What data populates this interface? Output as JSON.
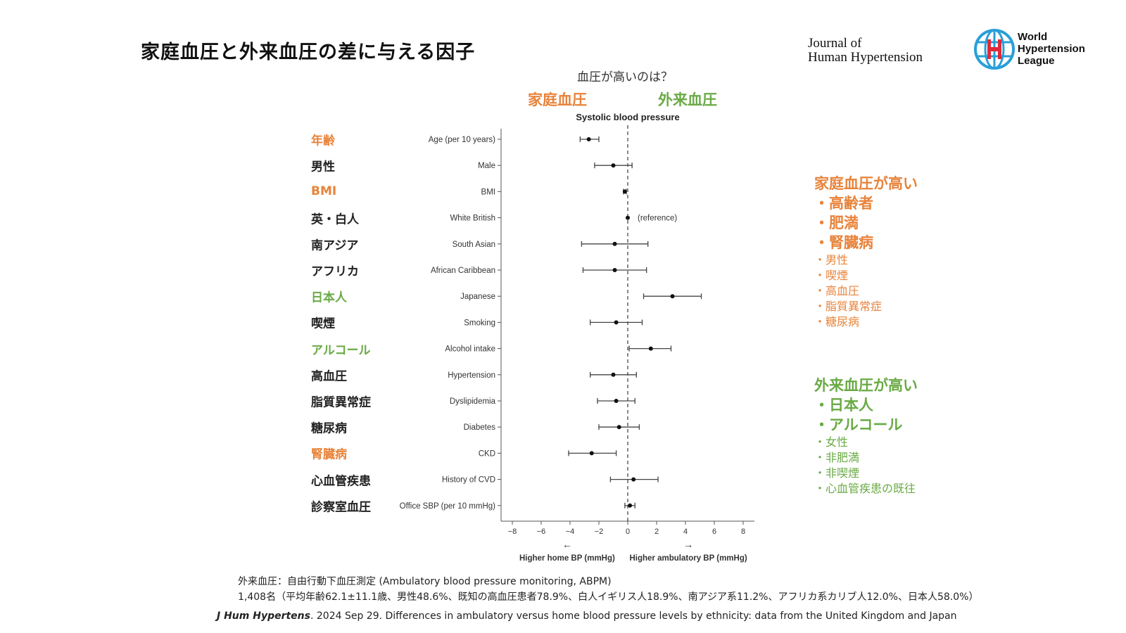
{
  "slide": {
    "title": "家庭血圧と外来血圧の差に与える因子",
    "journal_line1": "Journal of",
    "journal_line2": "Human Hypertension",
    "whl_line1": "World",
    "whl_line2": "Hypertension",
    "whl_line3": "League",
    "question": "血圧が高いのは？",
    "home_header": "家庭血圧",
    "clinic_header": "外来血圧"
  },
  "colors": {
    "orange": "#e8833a",
    "green": "#6aaa45",
    "black": "#222222",
    "logo_blue": "#2a9fd8",
    "logo_red": "#e0293a"
  },
  "chart_data": {
    "type": "scatter",
    "title": "Systolic blood pressure",
    "xlim": [
      -8,
      8
    ],
    "xticks": [
      "−8",
      "−6",
      "−4",
      "−2",
      "0",
      "2",
      "4",
      "6",
      "8"
    ],
    "xtick_values": [
      -8,
      -6,
      -4,
      -2,
      0,
      2,
      4,
      6,
      8
    ],
    "reference_line": 0,
    "left_arrow": "←",
    "right_arrow": "→",
    "xlabel_left": "Higher home BP (mmHg)",
    "xlabel_right": "Higher ambulatory BP (mmHg)",
    "reference_note": "(reference)",
    "rows": [
      {
        "jp": "年齢",
        "jp_color": "orange",
        "label": "Age (per 10 years)",
        "est": -2.7,
        "lo": -3.3,
        "hi": -2.0
      },
      {
        "jp": "男性",
        "jp_color": "black",
        "label": "Male",
        "est": -1.0,
        "lo": -2.3,
        "hi": 0.3
      },
      {
        "jp": "BMI",
        "jp_color": "orange",
        "label": "BMI",
        "est": -0.2,
        "lo": -0.3,
        "hi": -0.1
      },
      {
        "jp": "英・白人",
        "jp_color": "black",
        "label": "White British",
        "est": 0.0,
        "lo": 0.0,
        "hi": 0.0
      },
      {
        "jp": "南アジア",
        "jp_color": "black",
        "label": "South Asian",
        "est": -0.9,
        "lo": -3.2,
        "hi": 1.4
      },
      {
        "jp": "アフリカ",
        "jp_color": "black",
        "label": "African Caribbean",
        "est": -0.9,
        "lo": -3.1,
        "hi": 1.3
      },
      {
        "jp": "日本人",
        "jp_color": "green",
        "label": "Japanese",
        "est": 3.1,
        "lo": 1.1,
        "hi": 5.1
      },
      {
        "jp": "喫煙",
        "jp_color": "black",
        "label": "Smoking",
        "est": -0.8,
        "lo": -2.6,
        "hi": 1.0
      },
      {
        "jp": "アルコール",
        "jp_color": "green",
        "label": "Alcohol intake",
        "est": 1.6,
        "lo": 0.1,
        "hi": 3.0
      },
      {
        "jp": "高血圧",
        "jp_color": "black",
        "label": "Hypertension",
        "est": -1.0,
        "lo": -2.6,
        "hi": 0.6
      },
      {
        "jp": "脂質異常症",
        "jp_color": "black",
        "label": "Dyslipidemia",
        "est": -0.8,
        "lo": -2.1,
        "hi": 0.5
      },
      {
        "jp": "糖尿病",
        "jp_color": "black",
        "label": "Diabetes",
        "est": -0.6,
        "lo": -2.0,
        "hi": 0.8
      },
      {
        "jp": "腎臓病",
        "jp_color": "orange",
        "label": "CKD",
        "est": -2.5,
        "lo": -4.1,
        "hi": -0.8
      },
      {
        "jp": "心血管疾患",
        "jp_color": "black",
        "label": "History of CVD",
        "est": 0.4,
        "lo": -1.2,
        "hi": 2.1
      },
      {
        "jp": "診察室血圧",
        "jp_color": "black",
        "label": "Office SBP (per 10 mmHg)",
        "est": 0.15,
        "lo": -0.2,
        "hi": 0.5
      }
    ]
  },
  "home_panel": {
    "heading": "家庭血圧が高い",
    "main": [
      "・高齢者",
      "・肥満",
      "・腎臓病"
    ],
    "sub": [
      "・男性",
      "・喫煙",
      "・高血圧",
      "・脂質異常症",
      "・糖尿病"
    ]
  },
  "clinic_panel": {
    "heading": "外来血圧が高い",
    "main": [
      "・日本人",
      "・アルコール"
    ],
    "sub": [
      "・女性",
      "・非肥満",
      "・非喫煙",
      "・心血管疾患の既往"
    ]
  },
  "footer": {
    "note1": "外来血圧：自由行動下血圧測定 (Ambulatory blood pressure monitoring, ABPM)",
    "note2": "1,408名（平均年齢62.1±11.1歳、男性48.6%、既知の高血圧患者78.9%、白人イギリス人18.9%、南アジア系11.2%、アフリカ系カリブ人12.0%、日本人58.0%）",
    "journal_abbrev": "J Hum Hypertens",
    "citation_text": ". 2024 Sep 29. Differences in ambulatory versus home blood pressure levels by ethnicity: data from the United Kingdom and Japan"
  }
}
